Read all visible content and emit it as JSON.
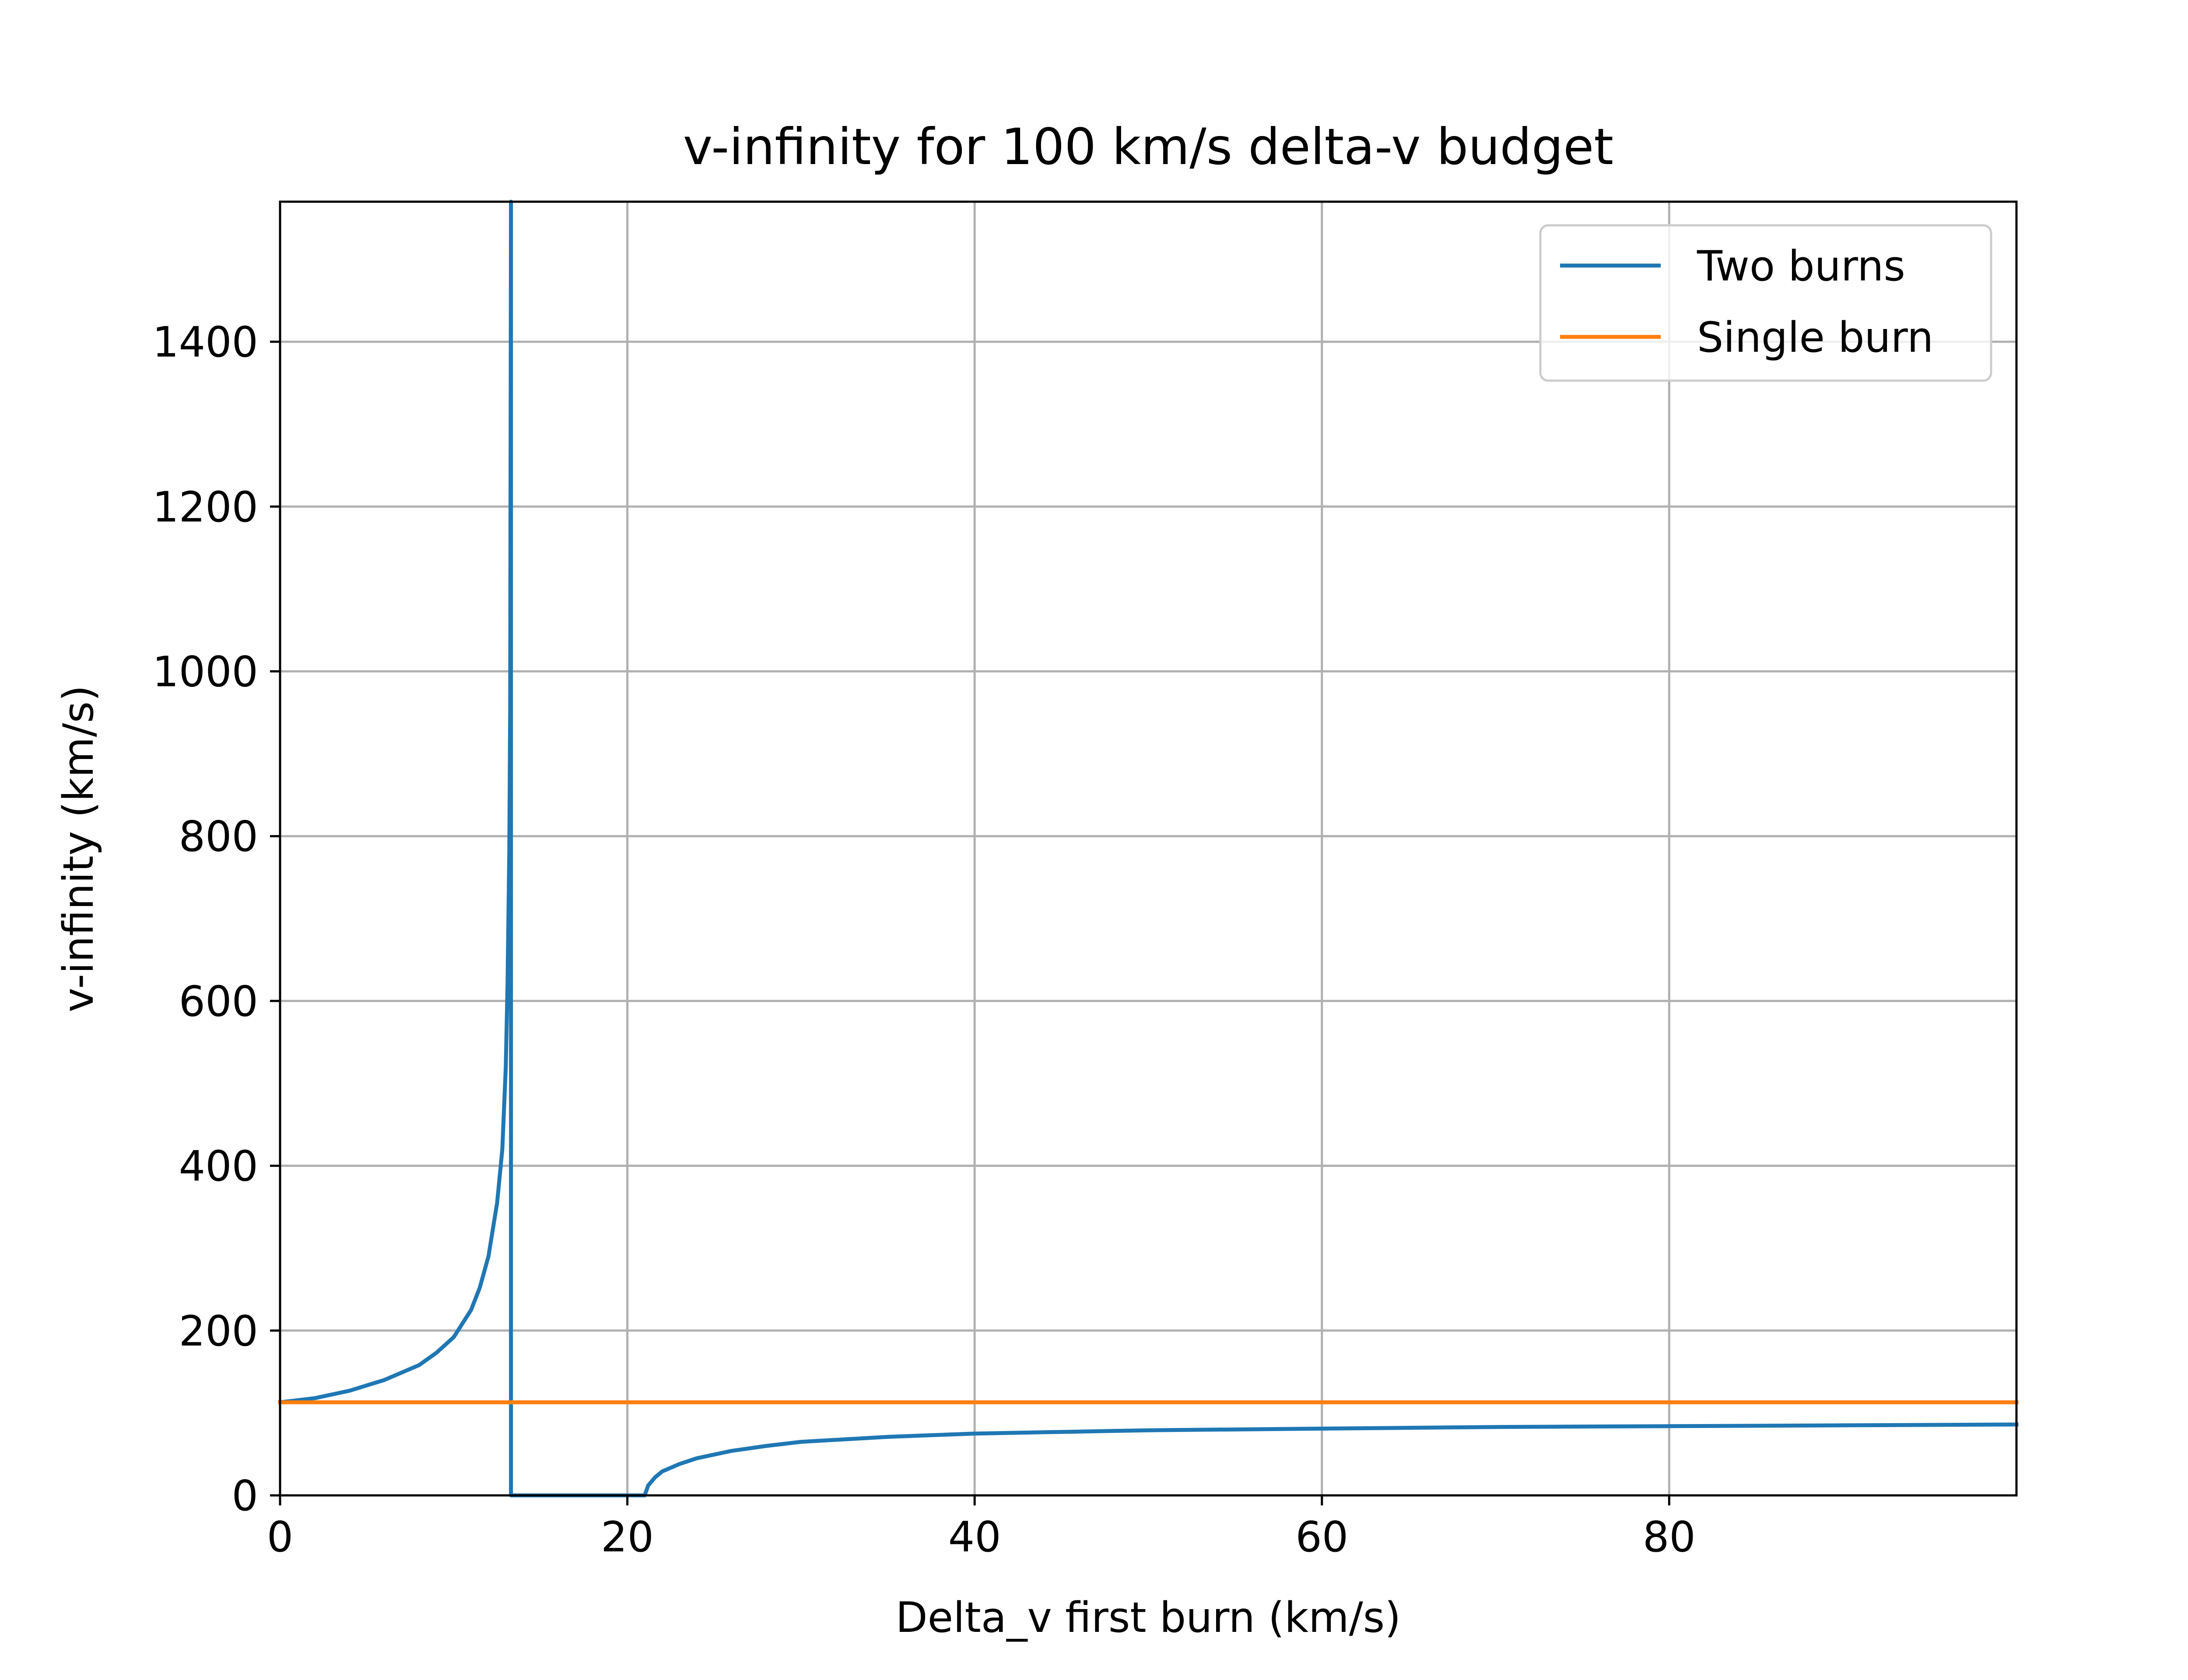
{
  "chart_data": {
    "type": "line",
    "title": "v-infinity for 100 km/s delta-v budget",
    "xlabel": "Delta_v first burn (km/s)",
    "ylabel": "v-infinity (km/s)",
    "xlim": [
      0,
      100
    ],
    "ylim": [
      0,
      1570
    ],
    "xticks": [
      0,
      20,
      40,
      60,
      80
    ],
    "yticks": [
      0,
      200,
      400,
      600,
      800,
      1000,
      1200,
      1400
    ],
    "xtick_labels": [
      "0",
      "20",
      "40",
      "60",
      "80"
    ],
    "ytick_labels": [
      "0",
      "200",
      "400",
      "600",
      "800",
      "1000",
      "1200",
      "1400"
    ],
    "grid": true,
    "legend_position": "top-right",
    "series": [
      {
        "name": "Two burns",
        "color": "#1f77b4",
        "x": [
          0,
          2,
          4,
          6,
          8,
          9,
          10,
          11,
          11.5,
          12,
          12.5,
          12.8,
          13.0,
          13.1,
          13.2,
          13.25,
          13.3,
          13.3,
          13.5,
          15,
          18,
          21,
          21.2,
          21.6,
          22,
          23,
          24,
          26,
          28,
          30,
          35,
          40,
          50,
          60,
          70,
          80,
          90,
          100
        ],
        "y": [
          113,
          118,
          127,
          140,
          158,
          173,
          192,
          225,
          252,
          290,
          355,
          420,
          520,
          620,
          780,
          950,
          1570,
          0,
          0,
          0,
          0,
          0,
          12,
          22,
          29,
          38,
          45,
          54,
          60,
          65,
          71,
          75,
          79,
          81,
          83,
          84,
          85,
          86
        ]
      },
      {
        "name": "Single burn",
        "color": "#ff7f0e",
        "x": [
          0,
          100
        ],
        "y": [
          113,
          113
        ]
      }
    ]
  }
}
